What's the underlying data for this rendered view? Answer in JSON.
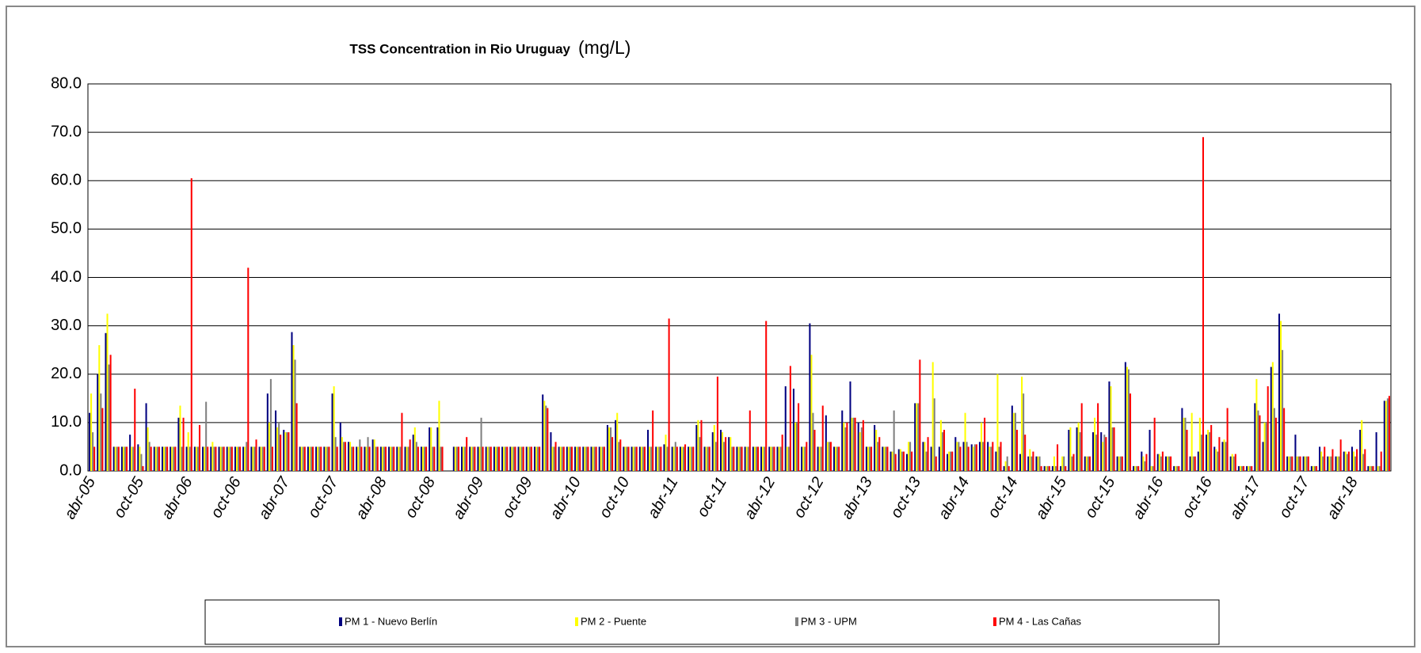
{
  "chart_data": {
    "type": "bar",
    "title": "TSS Concentration in Rio Uruguay",
    "title_unit": "(mg/L)",
    "categories": [
      "abr-05",
      null,
      null,
      null,
      null,
      null,
      "oct-05",
      null,
      null,
      null,
      null,
      null,
      "abr-06",
      null,
      null,
      null,
      null,
      null,
      "oct-06",
      null,
      null,
      null,
      null,
      null,
      "abr-07",
      null,
      null,
      null,
      null,
      null,
      "oct-07",
      null,
      null,
      null,
      null,
      null,
      "abr-08",
      null,
      null,
      null,
      null,
      null,
      "oct-08",
      null,
      null,
      null,
      null,
      null,
      "abr-09",
      null,
      null,
      null,
      null,
      null,
      "oct-09",
      null,
      null,
      null,
      null,
      null,
      "abr-10",
      null,
      null,
      null,
      null,
      null,
      "oct-10",
      null,
      null,
      null,
      null,
      null,
      "abr-11",
      null,
      null,
      null,
      null,
      null,
      "oct-11",
      null,
      null,
      null,
      null,
      null,
      "abr-12",
      null,
      null,
      null,
      null,
      null,
      "oct-12",
      null,
      null,
      null,
      null,
      null,
      "abr-13",
      null,
      null,
      null,
      null,
      null,
      "oct-13",
      null,
      null,
      null,
      null,
      null,
      "abr-14",
      null,
      null,
      null,
      null,
      null,
      "oct-14",
      null,
      null,
      null,
      null,
      null,
      "abr-15",
      null,
      null,
      null,
      null,
      null,
      "oct-15",
      null,
      null,
      null,
      null,
      null,
      "abr-16",
      null,
      null,
      null,
      null,
      null,
      "oct-16",
      null,
      null,
      null,
      null,
      null,
      "abr-17",
      null,
      null,
      null,
      null,
      null,
      "oct-17",
      null,
      null,
      null,
      null,
      null,
      "abr-18",
      null,
      null,
      null,
      null
    ],
    "series": [
      {
        "name": "PM 1 - Nuevo Berlín",
        "color": "#000080",
        "values": [
          12,
          20,
          28.5,
          5,
          5,
          7.5,
          5.5,
          14,
          5,
          5,
          5,
          11,
          5,
          5,
          5,
          5,
          5,
          5,
          5,
          5,
          5,
          5,
          16,
          12.5,
          8.5,
          28.7,
          5,
          5,
          5,
          5,
          16,
          10,
          6,
          5,
          5,
          6.5,
          5,
          5,
          5,
          5,
          7.5,
          5,
          9,
          9,
          null,
          5,
          5,
          5,
          5,
          5,
          5,
          5,
          5,
          5,
          5,
          5,
          15.8,
          8,
          5,
          5,
          5,
          5,
          5,
          5,
          9.5,
          10.5,
          5,
          5,
          5,
          8.5,
          5,
          5.5,
          5,
          5,
          5,
          9.5,
          5,
          8,
          8.5,
          7,
          5,
          5,
          5,
          5,
          5,
          5,
          17.5,
          17,
          5,
          30.5,
          5,
          11.5,
          5,
          12.5,
          18.5,
          10,
          5,
          9.5,
          5,
          4,
          4.5,
          3.5,
          14,
          6,
          5,
          5,
          3.5,
          7,
          6,
          5.5,
          6,
          6,
          4,
          1,
          13.5,
          3.5,
          3,
          3,
          1,
          1,
          1,
          8.5,
          9,
          3,
          8,
          8,
          18.5,
          3,
          22.5,
          1,
          4,
          8.5,
          3.5,
          3,
          1,
          13,
          3,
          4,
          7.5,
          5,
          6,
          3,
          1,
          1,
          14,
          6,
          21.5,
          32.5,
          3,
          7.5,
          3,
          1,
          5,
          3,
          3,
          4,
          5,
          8.5,
          1,
          8,
          14.5
        ]
      },
      {
        "name": "PM 2 - Puente",
        "color": "#ffff00",
        "values": [
          16,
          26,
          32.5,
          5,
          5,
          5,
          5,
          9,
          5,
          5,
          5,
          13.5,
          8,
          5,
          5,
          6,
          5,
          5,
          5,
          5,
          5,
          5,
          10,
          9,
          8,
          26,
          5,
          5,
          5,
          5,
          17.5,
          7,
          6,
          5,
          5,
          6.5,
          5,
          5,
          5,
          5,
          9,
          5,
          9,
          14.5,
          null,
          5,
          5,
          5,
          5,
          5,
          5,
          5,
          5,
          5,
          5,
          5,
          14.5,
          5,
          5,
          5,
          5,
          5,
          5,
          5,
          9,
          12,
          5,
          5,
          5,
          5,
          5,
          7.5,
          5,
          5,
          5,
          10.5,
          5,
          9.5,
          8,
          7,
          5,
          5,
          5,
          5,
          5,
          5,
          5,
          10,
          5,
          24,
          5,
          6,
          5,
          10,
          11,
          8,
          5,
          8.5,
          5,
          4,
          4.5,
          6,
          14,
          6,
          22.5,
          10.5,
          4,
          6,
          12,
          5,
          10,
          5,
          20,
          2,
          12,
          19.5,
          4.5,
          3,
          1,
          3,
          3,
          9,
          10,
          3,
          11,
          6,
          17.5,
          3,
          21.5,
          1,
          3,
          1,
          3.5,
          3,
          1,
          11,
          12,
          11,
          8.5,
          4.5,
          6.5,
          3.5,
          1,
          1,
          19,
          10,
          22.5,
          31,
          3,
          3,
          3,
          1,
          4,
          3,
          3,
          4,
          4,
          10.5,
          1,
          1,
          14.5
        ]
      },
      {
        "name": "PM 3 - UPM",
        "color": "#808080",
        "values": [
          8,
          16,
          22,
          5,
          5,
          5,
          3.5,
          6,
          5,
          5,
          5,
          5,
          5,
          5,
          14.3,
          5,
          5,
          5,
          5,
          6,
          5,
          5,
          19,
          10,
          8,
          23,
          5,
          5,
          5,
          5,
          7,
          6,
          5,
          6.5,
          7,
          5,
          5,
          5,
          5,
          5,
          6,
          5,
          5,
          5,
          null,
          5,
          5,
          5,
          11,
          5,
          5,
          5,
          5,
          5,
          5,
          5,
          13.5,
          5,
          5,
          5,
          5,
          5,
          5,
          5,
          9,
          6,
          5,
          5,
          5,
          5,
          5,
          5,
          6,
          5,
          5,
          7,
          5,
          6,
          6,
          5,
          5,
          5,
          5,
          5,
          5,
          5,
          5,
          10,
          5,
          12,
          5,
          6,
          5,
          9,
          11,
          9,
          5,
          6,
          5,
          12.5,
          4,
          6,
          14,
          4,
          15,
          8,
          4,
          6,
          6,
          5.5,
          6,
          5,
          5,
          3,
          12,
          16,
          3,
          3,
          1,
          1,
          3,
          3,
          8,
          3,
          7.5,
          7.5,
          9,
          3,
          21,
          1,
          2,
          1,
          3,
          3,
          1,
          11,
          3,
          7.5,
          8,
          4,
          6,
          3,
          1,
          1,
          12.5,
          10,
          13,
          25,
          3,
          3,
          3,
          1,
          3,
          3,
          3,
          3.5,
          3,
          3.5,
          1,
          1,
          15
        ]
      },
      {
        "name": "PM 4 - Las Cañas",
        "color": "#ff0000",
        "values": [
          5,
          13,
          24,
          5,
          5,
          17,
          1,
          5,
          5,
          5,
          5,
          11,
          60.5,
          9.5,
          5,
          5,
          5,
          5,
          5,
          42,
          6.5,
          5,
          5,
          7.5,
          8,
          14,
          5,
          5,
          5,
          5,
          5,
          6,
          5,
          5,
          5,
          5,
          5,
          5,
          12,
          6.5,
          5,
          5,
          5,
          5,
          null,
          5,
          7,
          5,
          5,
          5,
          5,
          5,
          5,
          5,
          5,
          5,
          13,
          6,
          5,
          5,
          5,
          5,
          5,
          5,
          7,
          6.5,
          5,
          5,
          5,
          12.5,
          5,
          31.5,
          5,
          5.5,
          5,
          10.5,
          5,
          19.5,
          7,
          5,
          5,
          12.5,
          5,
          31,
          5,
          7.5,
          21.7,
          14,
          6,
          8.5,
          13.5,
          6,
          5,
          10,
          11,
          10.5,
          5,
          7,
          5,
          3.5,
          4,
          4,
          23,
          7,
          3,
          8.5,
          4,
          5,
          5,
          5.5,
          11,
          6,
          6,
          1,
          8.5,
          7.5,
          4,
          1,
          1,
          5.5,
          1,
          3.5,
          14,
          3,
          14,
          7,
          9,
          3,
          16,
          1,
          3.5,
          11,
          4,
          3,
          1,
          8.5,
          3,
          69,
          9.5,
          7,
          13,
          3.5,
          1,
          1,
          11.5,
          17.5,
          11,
          13,
          3,
          3,
          3,
          1,
          5,
          4.5,
          6.5,
          4,
          4.5,
          4.5,
          1,
          4,
          15.5
        ]
      }
    ],
    "ylim": [
      0,
      80
    ],
    "yticks": [
      {
        "value": 0,
        "label": "0.0"
      },
      {
        "value": 10,
        "label": "10.0"
      },
      {
        "value": 20,
        "label": "20.0"
      },
      {
        "value": 30,
        "label": "30.0"
      },
      {
        "value": 40,
        "label": "40.0"
      },
      {
        "value": 50,
        "label": "50.0"
      },
      {
        "value": 60,
        "label": "60.0"
      },
      {
        "value": 70,
        "label": "70.0"
      },
      {
        "value": 80,
        "label": "80.0"
      }
    ],
    "grid": true,
    "legend": "bottom"
  }
}
